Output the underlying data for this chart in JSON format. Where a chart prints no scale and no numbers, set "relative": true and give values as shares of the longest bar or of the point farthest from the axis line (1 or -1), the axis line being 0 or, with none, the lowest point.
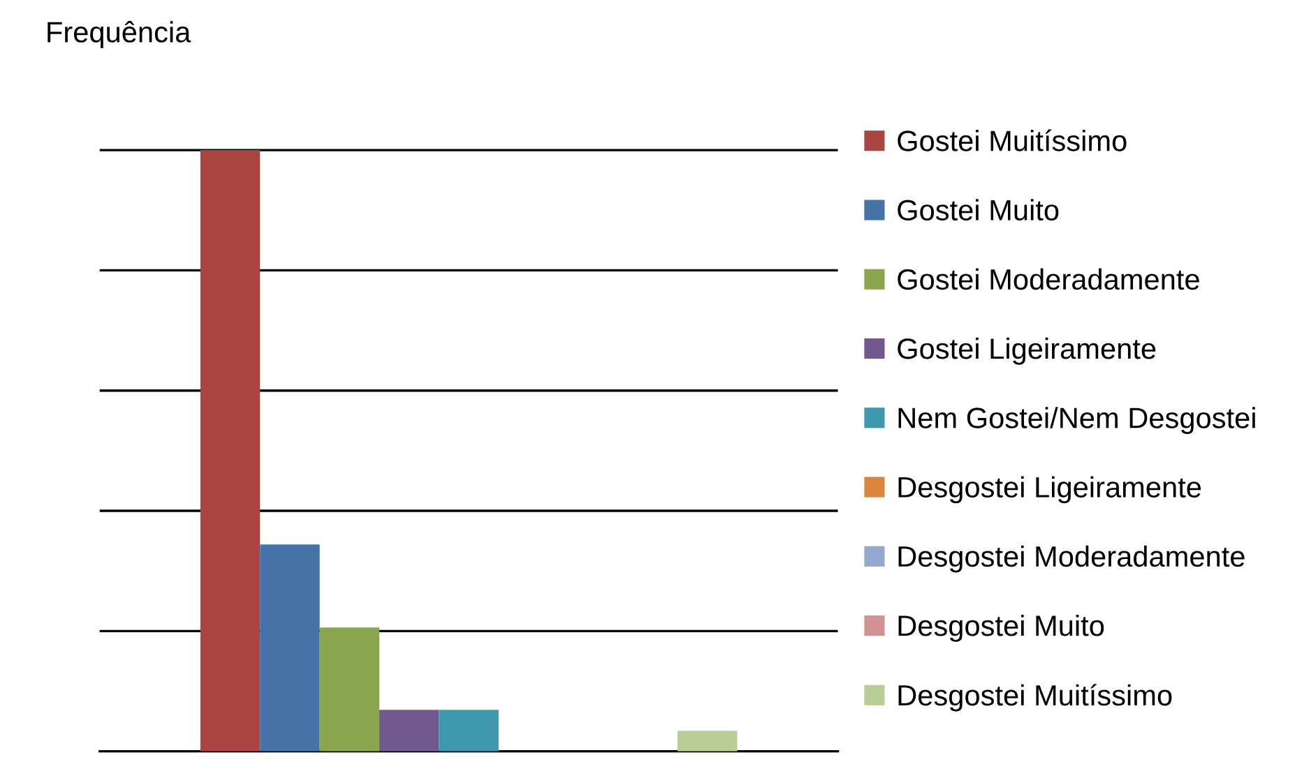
{
  "chart_data": {
    "type": "bar",
    "relative": true,
    "ylabel": "Frequência",
    "categories": [
      null
    ],
    "grid": "y",
    "legend": "right",
    "series": [
      {
        "name": "Gostei Muitíssimo",
        "color": "#a94543",
        "values": [
          1
        ]
      },
      {
        "name": "Gostei Muito",
        "color": "#4573a8",
        "values": [
          0.344
        ]
      },
      {
        "name": "Gostei Moderadamente",
        "color": "#89a54e",
        "values": [
          0.206
        ]
      },
      {
        "name": "Gostei Ligeiramente",
        "color": "#71588f",
        "values": [
          0.069
        ]
      },
      {
        "name": "Nem Gostei/Nem Desgostei",
        "color": "#4098af",
        "values": [
          0.069
        ]
      },
      {
        "name": "Desgostei Ligeiramente",
        "color": "#db843d",
        "values": [
          0
        ]
      },
      {
        "name": "Desgostei Moderadamente",
        "color": "#93a9cf",
        "values": [
          0
        ]
      },
      {
        "name": "Desgostei Muito",
        "color": "#d19392",
        "values": [
          0
        ]
      },
      {
        "name": "Desgostei Muitíssimo",
        "color": "#b9cd96",
        "values": [
          0.034
        ]
      }
    ]
  }
}
